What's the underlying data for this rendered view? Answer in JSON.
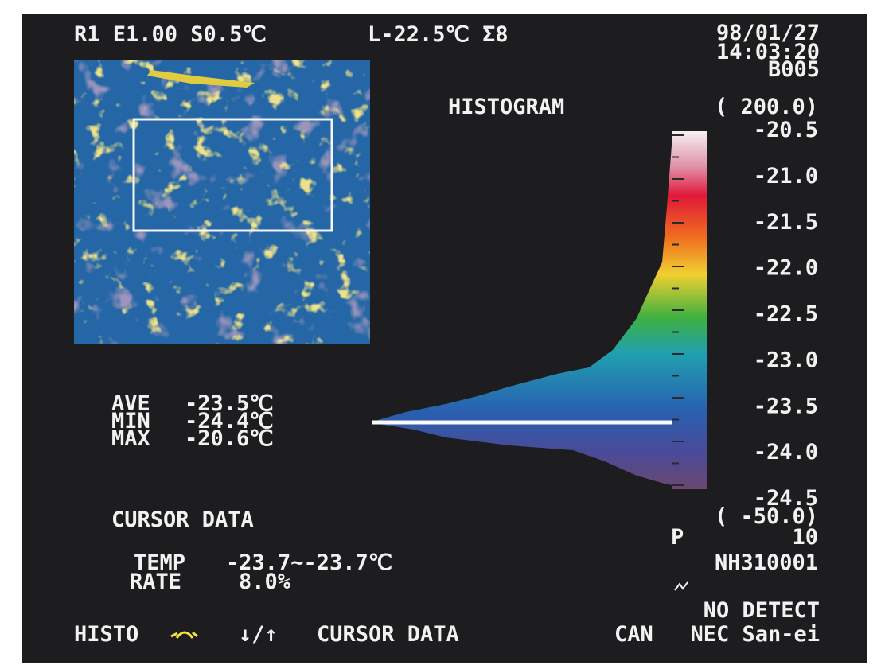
{
  "header": {
    "settings": "R1 E1.00 S0.5℃",
    "level": "L-22.5℃ Σ8",
    "date": "98/01/27",
    "time": "14:03:20",
    "code": "B005"
  },
  "histogram": {
    "title": "HISTOGRAM",
    "max_label": "( 200.0)",
    "min_label": "( -50.0)",
    "scale_labels": [
      "-20.5",
      "-21.0",
      "-21.5",
      "-22.0",
      "-22.5",
      "-23.0",
      "-23.5",
      "-24.0",
      "-24.5"
    ]
  },
  "stats": [
    {
      "label": "AVE",
      "value": "-23.5℃"
    },
    {
      "label": "MIN",
      "value": "-24.4℃"
    },
    {
      "label": "MAX",
      "value": "-20.6℃"
    }
  ],
  "cursor_data": {
    "title": "CURSOR DATA",
    "temp_label": "TEMP",
    "temp_value": "-23.7~-23.7℃",
    "rate_label": "RATE",
    "rate_value": "8.0%"
  },
  "status": {
    "p_label": "P",
    "p_value": "10",
    "id": "NH310001",
    "no_detect": "NO DETECT",
    "can": "CAN",
    "brand": "NEC San-ei"
  },
  "footer": {
    "histo": "HISTO",
    "arrows": "↓/↑",
    "cursor_data": "CURSOR DATA"
  }
}
